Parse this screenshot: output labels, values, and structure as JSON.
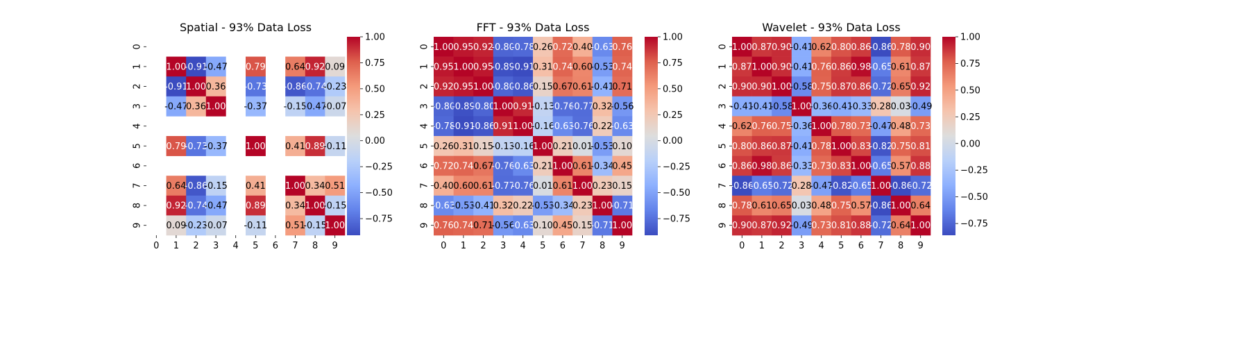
{
  "colormap": {
    "name": "coolwarm",
    "low": "#3b4cc0",
    "mid": "#dddddd",
    "high": "#b40426"
  },
  "chart_data": [
    {
      "type": "heatmap",
      "title": "Spatial - 93% Data Loss",
      "x_tick_labels": [
        "0",
        "1",
        "2",
        "3",
        "4",
        "5",
        "6",
        "7",
        "8",
        "9"
      ],
      "y_tick_labels": [
        "0",
        "1",
        "2",
        "3",
        "4",
        "5",
        "6",
        "7",
        "8",
        "9"
      ],
      "colorbar": {
        "range": [
          -0.91,
          1.0
        ],
        "ticks": [
          1.0,
          0.75,
          0.5,
          0.25,
          0.0,
          -0.25,
          -0.5,
          -0.75
        ],
        "tick_labels": [
          "1.00",
          "0.75",
          "0.50",
          "0.25",
          "0.00",
          "−0.25",
          "−0.50",
          "−0.75"
        ]
      },
      "matrix": [
        [
          null,
          null,
          null,
          null,
          null,
          null,
          null,
          null,
          null,
          null
        ],
        [
          null,
          1.0,
          -0.91,
          -0.47,
          null,
          0.79,
          null,
          0.64,
          0.92,
          0.09
        ],
        [
          null,
          -0.91,
          1.0,
          0.36,
          null,
          -0.73,
          null,
          -0.86,
          -0.74,
          -0.23
        ],
        [
          null,
          -0.47,
          0.36,
          1.0,
          null,
          -0.37,
          null,
          -0.15,
          -0.47,
          -0.07
        ],
        [
          null,
          null,
          null,
          null,
          null,
          null,
          null,
          null,
          null,
          null
        ],
        [
          null,
          0.79,
          -0.73,
          -0.37,
          null,
          1.0,
          null,
          0.41,
          0.89,
          -0.11
        ],
        [
          null,
          null,
          null,
          null,
          null,
          null,
          null,
          null,
          null,
          null
        ],
        [
          null,
          0.64,
          -0.86,
          -0.15,
          null,
          0.41,
          null,
          1.0,
          0.34,
          0.51
        ],
        [
          null,
          0.92,
          -0.74,
          -0.47,
          null,
          0.89,
          null,
          0.34,
          1.0,
          -0.15
        ],
        [
          null,
          0.09,
          -0.23,
          -0.07,
          null,
          -0.11,
          null,
          0.51,
          -0.15,
          1.0
        ]
      ]
    },
    {
      "type": "heatmap",
      "title": "FFT - 93% Data Loss",
      "x_tick_labels": [
        "0",
        "1",
        "2",
        "3",
        "4",
        "5",
        "6",
        "7",
        "8",
        "9"
      ],
      "y_tick_labels": [
        "0",
        "1",
        "2",
        "3",
        "4",
        "5",
        "6",
        "7",
        "8",
        "9"
      ],
      "colorbar": {
        "range": [
          -0.91,
          1.0
        ],
        "ticks": [
          1.0,
          0.75,
          0.5,
          0.25,
          0.0,
          -0.25,
          -0.5,
          -0.75
        ],
        "tick_labels": [
          "1.00",
          "0.75",
          "0.50",
          "0.25",
          "0.00",
          "−0.25",
          "−0.50",
          "−0.75"
        ]
      },
      "matrix": [
        [
          1.0,
          0.95,
          0.92,
          -0.8,
          -0.78,
          0.26,
          0.72,
          0.4,
          -0.63,
          0.76
        ],
        [
          0.95,
          1.0,
          0.95,
          -0.89,
          -0.91,
          0.31,
          0.74,
          0.6,
          -0.53,
          0.74
        ],
        [
          0.92,
          0.95,
          1.0,
          -0.8,
          -0.86,
          0.15,
          0.67,
          0.61,
          -0.41,
          0.71
        ],
        [
          -0.8,
          -0.89,
          -0.8,
          1.0,
          0.91,
          -0.13,
          -0.76,
          -0.77,
          0.32,
          -0.56
        ],
        [
          -0.78,
          -0.91,
          -0.86,
          0.91,
          1.0,
          -0.16,
          -0.63,
          -0.76,
          0.22,
          -0.63
        ],
        [
          0.26,
          0.31,
          0.15,
          -0.13,
          -0.16,
          1.0,
          0.21,
          0.01,
          -0.53,
          0.1
        ],
        [
          0.72,
          0.74,
          0.67,
          -0.76,
          -0.63,
          0.21,
          1.0,
          0.61,
          -0.34,
          0.45
        ],
        [
          0.4,
          0.6,
          0.61,
          -0.77,
          -0.76,
          0.01,
          0.61,
          1.0,
          0.23,
          0.15
        ],
        [
          -0.63,
          -0.53,
          -0.41,
          0.32,
          0.22,
          -0.53,
          -0.34,
          0.23,
          1.0,
          -0.71
        ],
        [
          0.76,
          0.74,
          0.71,
          -0.56,
          -0.63,
          0.1,
          0.45,
          0.15,
          -0.71,
          1.0
        ]
      ]
    },
    {
      "type": "heatmap",
      "title": "Wavelet - 93% Data Loss",
      "x_tick_labels": [
        "0",
        "1",
        "2",
        "3",
        "4",
        "5",
        "6",
        "7",
        "8",
        "9"
      ],
      "y_tick_labels": [
        "0",
        "1",
        "2",
        "3",
        "4",
        "5",
        "6",
        "7",
        "8",
        "9"
      ],
      "colorbar": {
        "range": [
          -0.86,
          1.0
        ],
        "ticks": [
          1.0,
          0.75,
          0.5,
          0.25,
          0.0,
          -0.25,
          -0.5,
          -0.75
        ],
        "tick_labels": [
          "1.00",
          "0.75",
          "0.50",
          "0.25",
          "0.00",
          "−0.25",
          "−0.50",
          "−0.75"
        ]
      },
      "matrix": [
        [
          1.0,
          0.87,
          0.9,
          -0.41,
          0.62,
          0.8,
          0.86,
          -0.86,
          0.78,
          0.9
        ],
        [
          0.87,
          1.0,
          0.9,
          -0.41,
          0.76,
          0.86,
          0.98,
          -0.65,
          0.61,
          0.87
        ],
        [
          0.9,
          0.9,
          1.0,
          -0.58,
          0.75,
          0.87,
          0.86,
          -0.72,
          0.65,
          0.92
        ],
        [
          -0.41,
          -0.41,
          -0.58,
          1.0,
          -0.36,
          -0.41,
          -0.33,
          0.28,
          0.03,
          -0.49
        ],
        [
          0.62,
          0.76,
          0.75,
          -0.36,
          1.0,
          0.78,
          0.73,
          -0.47,
          0.48,
          0.73
        ],
        [
          0.8,
          0.86,
          0.87,
          -0.41,
          0.78,
          1.0,
          0.83,
          -0.82,
          0.75,
          0.81
        ],
        [
          0.86,
          0.98,
          0.86,
          -0.33,
          0.73,
          0.83,
          1.0,
          -0.65,
          0.57,
          0.88
        ],
        [
          -0.86,
          -0.65,
          -0.72,
          0.28,
          -0.47,
          -0.82,
          -0.65,
          1.0,
          -0.86,
          -0.72
        ],
        [
          0.78,
          0.61,
          0.65,
          0.03,
          0.48,
          0.75,
          0.57,
          -0.86,
          1.0,
          0.64
        ],
        [
          0.9,
          0.87,
          0.92,
          -0.49,
          0.73,
          0.81,
          0.88,
          -0.72,
          0.64,
          1.0
        ]
      ]
    }
  ]
}
